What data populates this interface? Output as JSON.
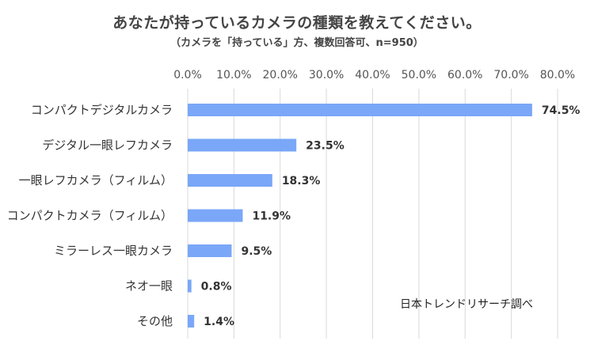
{
  "chart_data": {
    "type": "bar",
    "orientation": "horizontal",
    "title": "あなたが持っているカメラの種類を教えてください。",
    "subtitle": "（カメラを「持っている」方、複数回答可、n=950）",
    "categories": [
      "コンパクトデジタルカメラ",
      "デジタル一眼レフカメラ",
      "一眼レフカメラ（フィルム）",
      "コンパクトカメラ（フィルム）",
      "ミラーレス一眼カメラ",
      "ネオ一眼",
      "その他"
    ],
    "values": [
      74.5,
      23.5,
      18.3,
      11.9,
      9.5,
      0.8,
      1.4
    ],
    "value_labels": [
      "74.5%",
      "23.5%",
      "18.3%",
      "11.9%",
      "9.5%",
      "0.8%",
      "1.4%"
    ],
    "xlim": [
      0,
      80
    ],
    "x_ticks": [
      "0.0%",
      "10.0%",
      "20.0%",
      "30.0%",
      "40.0%",
      "50.0%",
      "60.0%",
      "70.0%",
      "80.0%"
    ],
    "x_axis_position": "top",
    "grid": true,
    "legend": false,
    "annotation": "日本トレンドリサーチ調べ",
    "bar_color": "#7aa7f7",
    "grid_color": "#d9d9d9"
  }
}
